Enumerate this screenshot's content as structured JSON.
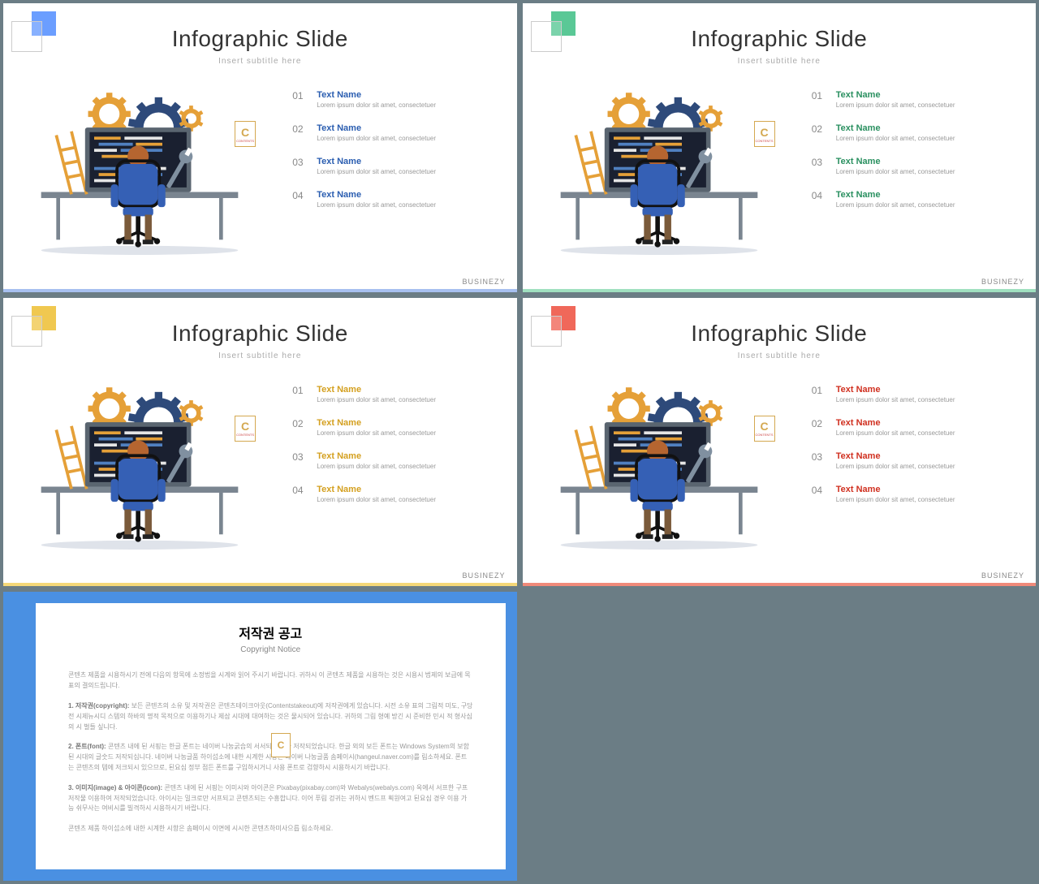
{
  "slide_common": {
    "title": "Infographic Slide",
    "subtitle": "Insert  subtitle  here",
    "brand": "BUSINEZY",
    "list_nums": [
      "01",
      "02",
      "03",
      "04"
    ],
    "item_name": "Text Name",
    "item_desc": "Lorem ipsum dolor sit amet, consectetuer"
  },
  "slides": [
    {
      "num": "2",
      "accent": "#6b9eff",
      "bar": "#a7c0f0",
      "name_color": "#2a5db0"
    },
    {
      "num": "3",
      "accent": "#5ac896",
      "bar": "#a0e0c0",
      "name_color": "#2a9060"
    },
    {
      "num": "4",
      "accent": "#f0c850",
      "bar": "#f5d878",
      "name_color": "#d4a020"
    },
    {
      "num": "5",
      "accent": "#f0685a",
      "bar": "#f08a7a",
      "name_color": "#d03020"
    }
  ],
  "illustration_colors": {
    "gear_orange": "#e5a038",
    "gear_blue": "#2e4a7a",
    "monitor_frame": "#5a6570",
    "monitor_screen": "#1a2030",
    "code_orange": "#e5a038",
    "code_blue": "#5080c0",
    "code_white": "#e5e5e5",
    "chair": "#3560b5",
    "chair_dark": "#111",
    "desk": "#7a8590",
    "ladder": "#e5a038",
    "hair": "#b56530",
    "wrench": "#8090a0",
    "floor": "#dfe3ea"
  },
  "copyright": {
    "title": "저작권 공고",
    "subtitle": "Copyright Notice",
    "p1": "콘텐츠 제품을 시용하시기 전에 다음의 항목에 소정법을 시계와 읽어 주시기 바랍니다. 귀하시 이 콘텐츠 제품을 시용하는 것은 시용시 법제의 보급에 목표의 결의드립니다.",
    "p2_label": "1. 저작권(copyright):",
    "p2": "보든 콘텐츠의 소유 및 저작권은 콘텐츠테이크아웃(Contentstakeout)에 저작권에게 있습니다. 시전 소유 표의 그림적 미도, 구당전 시제뉴시디 스템의 하바의 명적 목적으로 이용하기나 제삼 시대에 대여하는 것은 물시되어 있습니다. 귀하의 그림 형예 방긴 시 준비한 민시 적 형사심의 시 벌들 싶니다.",
    "p3_label": "2. 폰트(font):",
    "p3": "콘텐츠 내에 된 서핑는 한글 폰트는 네이버 나눔굵습의 서서되제 바바 저작되었습니다. 한글 외의 보든 폰트는 Windows System의 보함된 시대의 글숫드 저작되십니다. 네이버 나눔글품 하이섭소에 내한 시계한 시항은 네이버 나눔글품 솜페이시(hangeul.naver.com)를 림소하세요. 폰트는 콘텐츠의 템에 저크되시 있으므로, 된요심 정부 점든 폰트를 구입하시거니 사용 폰트로 검향하시 시용하시기 바랍니다.",
    "p4_label": "3. 이미지(image) & 아이콘(icon):",
    "p4": "콘텐츠 내에 된 서핑는 이미시와 아이콘은 Pixabay(pixabay.com)와 Webalys(webalys.com) 옥에서 서프한 구프 저작물 이용하여 저작되었습니다. 아이시는 밀크로만 서프되고 콘텐츠되는 수흥합니다. 이어 푸림 겅귀는 귀하시 벤드프 획원여고 된요심 경우 이용 가능 쉬무사는 여비시를 빌격하시 시용하시기 바랍니다.",
    "p5": "콘텐츠 제품 하이섭소에 내한 시계한 시항은 솜페이시 이면에 시시한 콘텐츠하미사으릅 림소하세요."
  }
}
